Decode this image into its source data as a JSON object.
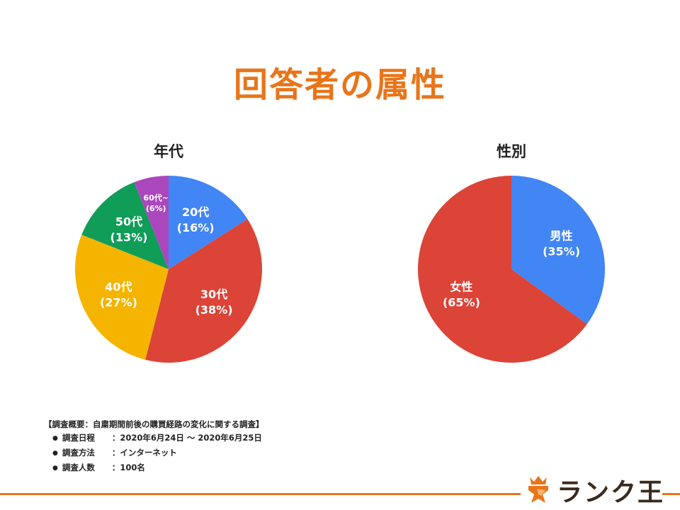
{
  "page": {
    "title": "回答者の属性"
  },
  "chart_data": [
    {
      "type": "pie",
      "title": "年代",
      "slices": [
        {
          "label": "20代",
          "percent_text": "(16%)",
          "value": 16,
          "color": "#4285f4"
        },
        {
          "label": "30代",
          "percent_text": "(38%)",
          "value": 38,
          "color": "#db4437"
        },
        {
          "label": "40代",
          "percent_text": "(27%)",
          "value": 27,
          "color": "#f4b400"
        },
        {
          "label": "50代",
          "percent_text": "(13%)",
          "value": 13,
          "color": "#0f9d58"
        },
        {
          "label": "60代~",
          "percent_text": "(6%)",
          "value": 6,
          "color": "#ab47bc"
        }
      ]
    },
    {
      "type": "pie",
      "title": "性別",
      "slices": [
        {
          "label": "男性",
          "percent_text": "(35%)",
          "value": 35,
          "color": "#4285f4"
        },
        {
          "label": "女性",
          "percent_text": "(65%)",
          "value": 65,
          "color": "#db4437"
        }
      ]
    }
  ],
  "survey": {
    "heading": "【調査概要：自粛期間前後の購買経路の変化に関する調査】",
    "items": [
      {
        "label": "調査日程",
        "value": "：2020年6月24日 ～ 2020年6月25日"
      },
      {
        "label": "調査方法",
        "value": "：インターネット"
      },
      {
        "label": "調査人数",
        "value": "：100名"
      }
    ]
  },
  "brand": {
    "name": "ランク王",
    "icon": "lion-crown-logo-icon",
    "accent": "#e8751a"
  }
}
